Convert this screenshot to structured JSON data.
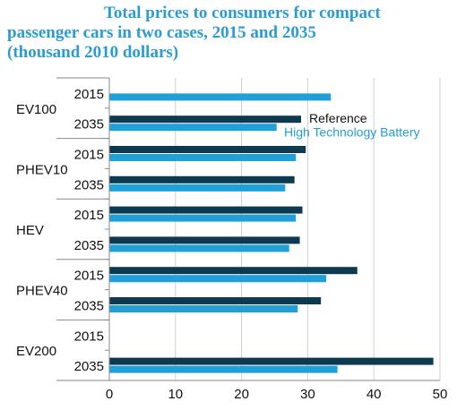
{
  "title_lines": [
    "Total prices to consumers for compact",
    "passenger cars in two cases, 2015 and 2035",
    "(thousand 2010 dollars)"
  ],
  "colors": {
    "reference": "#0d3a4e",
    "high_tech": "#1fa0d8",
    "axis": "#888888",
    "grid": "#d0d0d0"
  },
  "chart_data": {
    "type": "bar",
    "orientation": "horizontal",
    "groups": [
      "EV100",
      "PHEV10",
      "HEV",
      "PHEV40",
      "EV200"
    ],
    "years": [
      "2015",
      "2035"
    ],
    "series": [
      {
        "name": "Reference",
        "values": [
          null,
          29.0,
          29.7,
          28.0,
          29.2,
          28.8,
          37.5,
          32.0,
          null,
          49.0
        ]
      },
      {
        "name": "High Technology Battery",
        "values": [
          33.5,
          25.3,
          28.2,
          26.6,
          28.2,
          27.2,
          32.8,
          28.5,
          null,
          34.5
        ]
      }
    ],
    "xlim": [
      0,
      50
    ],
    "xticks": [
      "0",
      "10",
      "20",
      "30",
      "40",
      "50"
    ],
    "legend_position": "inside, right of the EV100 2035 bars",
    "grid": true
  }
}
